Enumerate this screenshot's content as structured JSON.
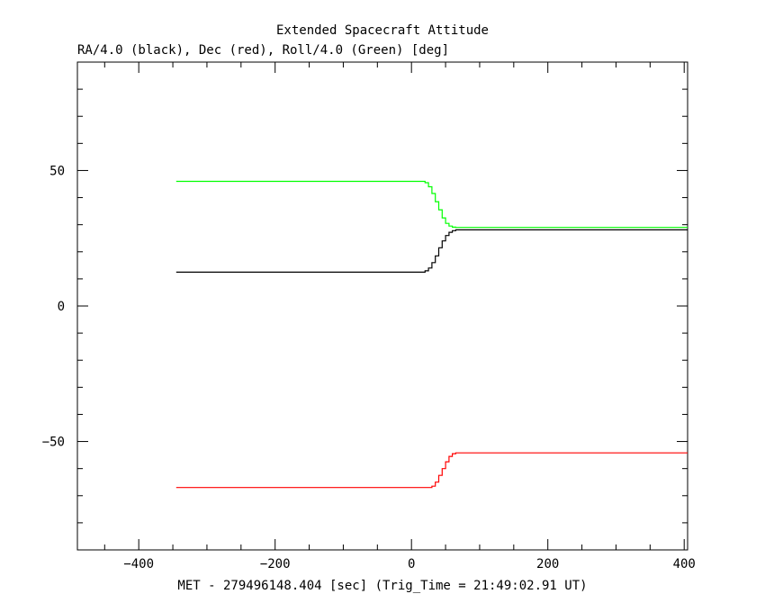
{
  "chart_data": {
    "type": "line",
    "title": "Extended Spacecraft Attitude",
    "subtitle": "RA/4.0 (black), Dec (red), Roll/4.0 (Green) [deg]",
    "xlabel": "MET - 279496148.404 [sec] (Trig_Time = 21:49:02.91 UT)",
    "ylabel": "",
    "xlim": [
      -490,
      405
    ],
    "ylim": [
      -90,
      90
    ],
    "xticks": [
      -400,
      -200,
      0,
      200,
      400
    ],
    "yticks": [
      -50,
      0,
      50
    ],
    "grid": false,
    "series": [
      {
        "color": "#000000",
        "x": [
          -345,
          15,
          20,
          25,
          30,
          35,
          40,
          45,
          50,
          55,
          60,
          65,
          405
        ],
        "y": [
          12.5,
          12.5,
          13.0,
          14.0,
          16.0,
          18.5,
          21.5,
          24.0,
          26.0,
          27.2,
          27.8,
          28.1,
          28.1
        ]
      },
      {
        "color": "#ff0000",
        "x": [
          -345,
          15,
          25,
          30,
          35,
          40,
          45,
          50,
          55,
          60,
          65,
          405
        ],
        "y": [
          -67,
          -67,
          -67,
          -66.5,
          -65,
          -62.5,
          -60,
          -57.5,
          -55.5,
          -54.5,
          -54.2,
          -54.2
        ]
      },
      {
        "color": "#00ff00",
        "x": [
          -345,
          15,
          20,
          25,
          30,
          35,
          40,
          45,
          50,
          55,
          60,
          65,
          405
        ],
        "y": [
          46,
          46,
          45.5,
          44,
          41.5,
          38.5,
          35.5,
          32.5,
          30.5,
          29.5,
          29.1,
          29.0,
          29.0
        ]
      }
    ]
  }
}
